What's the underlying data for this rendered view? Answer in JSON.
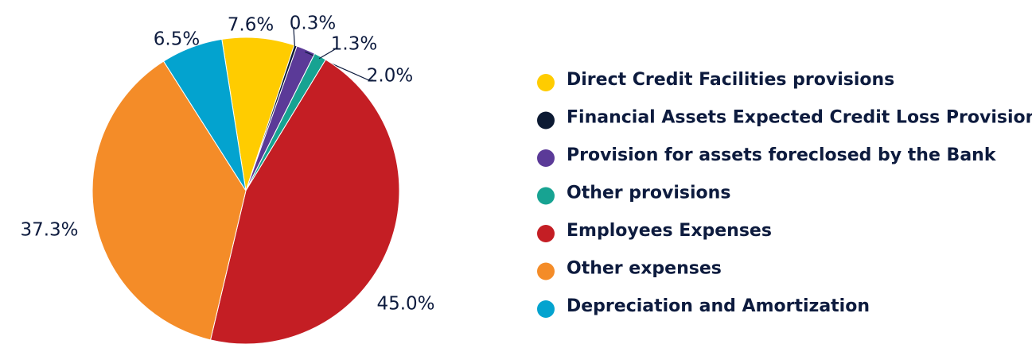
{
  "chart_data": {
    "type": "pie",
    "categories": [
      "Direct Credit Facilities provisions",
      "Financial Assets Expected Credit Loss Provision",
      "Provision for assets foreclosed by the Bank",
      "Other provisions",
      "Employees Expenses",
      "Other expenses",
      "Depreciation and Amortization"
    ],
    "values": [
      7.6,
      0.3,
      2.0,
      1.3,
      45.0,
      37.3,
      6.5
    ],
    "value_labels": [
      "7.6%",
      "0.3%",
      "2.0%",
      "1.3%",
      "45.0%",
      "37.3%",
      "6.5%"
    ],
    "colors": [
      "#ffcc00",
      "#0c1a33",
      "#5b3a98",
      "#17a392",
      "#c41e24",
      "#f48c28",
      "#03a3cf"
    ],
    "legend": "right"
  }
}
